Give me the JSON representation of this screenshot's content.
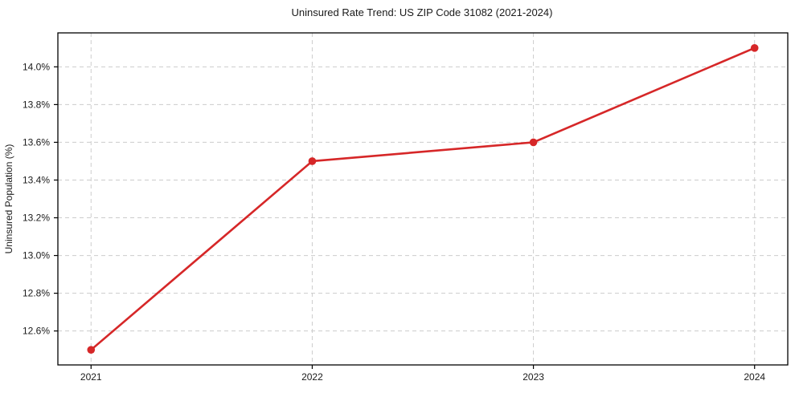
{
  "chart_data": {
    "type": "line",
    "title": "Uninsured Rate Trend: US ZIP Code 31082 (2021-2024)",
    "ylabel": "Uninsured Population (%)",
    "xlabel": "",
    "x": [
      2021,
      2022,
      2023,
      2024
    ],
    "values": [
      12.5,
      13.5,
      13.6,
      14.1
    ],
    "unit": "%",
    "xticks": [
      2021,
      2022,
      2023,
      2024
    ],
    "yticks": [
      12.6,
      12.8,
      13.0,
      13.2,
      13.4,
      13.6,
      13.8,
      14.0
    ],
    "ytick_suffix": "%",
    "xlim": [
      2020.85,
      2024.15
    ],
    "ylim": [
      12.42,
      14.18
    ],
    "grid": true,
    "grid_style": "dashed",
    "legend": false,
    "colors": {
      "line": "#d62728",
      "marker": "#d62728",
      "grid": "#cccccc",
      "axis": "#000000",
      "text": "#1a1a1a",
      "background": "#ffffff"
    }
  }
}
